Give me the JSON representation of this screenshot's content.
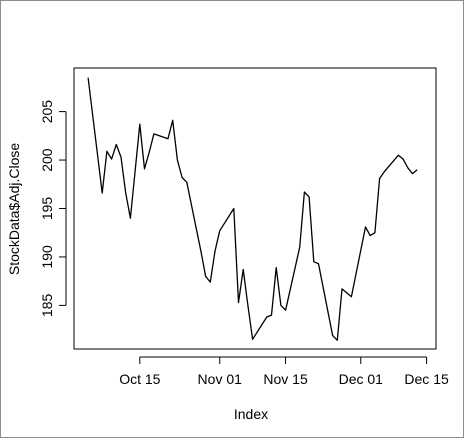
{
  "chart_data": {
    "type": "line",
    "title": "",
    "xlabel": "Index",
    "ylabel": "StockData$Adj.Close",
    "xlim": [
      "2013-10-01",
      "2013-12-17"
    ],
    "ylim": [
      180.5,
      209.5
    ],
    "grid": false,
    "legend": "none",
    "line_color": "#000000",
    "x_ticks": [
      {
        "date": "2013-10-15",
        "label": "Oct 15"
      },
      {
        "date": "2013-11-01",
        "label": "Nov 01"
      },
      {
        "date": "2013-11-15",
        "label": "Nov 15"
      },
      {
        "date": "2013-12-01",
        "label": "Dec 01"
      },
      {
        "date": "2013-12-15",
        "label": "Dec 15"
      }
    ],
    "y_ticks": [
      185,
      190,
      195,
      200,
      205
    ],
    "series": [
      {
        "x": [
          "2013-10-04",
          "2013-10-07",
          "2013-10-08",
          "2013-10-09",
          "2013-10-10",
          "2013-10-11",
          "2013-10-12",
          "2013-10-13",
          "2013-10-15",
          "2013-10-16",
          "2013-10-17",
          "2013-10-18",
          "2013-10-21",
          "2013-10-22",
          "2013-10-23",
          "2013-10-24",
          "2013-10-25",
          "2013-10-28",
          "2013-10-29",
          "2013-10-30",
          "2013-10-31",
          "2013-11-01",
          "2013-11-04",
          "2013-11-05",
          "2013-11-06",
          "2013-11-07",
          "2013-11-08",
          "2013-11-11",
          "2013-11-12",
          "2013-11-13",
          "2013-11-14",
          "2013-11-15",
          "2013-11-18",
          "2013-11-19",
          "2013-11-20",
          "2013-11-21",
          "2013-11-22",
          "2013-11-25",
          "2013-11-26",
          "2013-11-27",
          "2013-11-29",
          "2013-12-02",
          "2013-12-03",
          "2013-12-04",
          "2013-12-05",
          "2013-12-06",
          "2013-12-09",
          "2013-12-10",
          "2013-12-11",
          "2013-12-12",
          "2013-12-13"
        ],
        "y": [
          208.5,
          196.6,
          200.9,
          200.1,
          201.6,
          200.3,
          196.6,
          194.0,
          203.7,
          199.1,
          200.8,
          202.7,
          202.2,
          204.1,
          200.0,
          198.2,
          197.7,
          190.6,
          188.0,
          187.4,
          190.6,
          192.7,
          195.0,
          185.3,
          188.7,
          185.0,
          181.5,
          183.8,
          184.0,
          188.9,
          185.0,
          184.5,
          191.0,
          196.7,
          196.2,
          189.5,
          189.3,
          181.9,
          181.4,
          186.7,
          185.9,
          193.1,
          192.2,
          192.5,
          198.1,
          198.8,
          200.5,
          200.1,
          199.2,
          198.6,
          199.0
        ]
      }
    ]
  }
}
